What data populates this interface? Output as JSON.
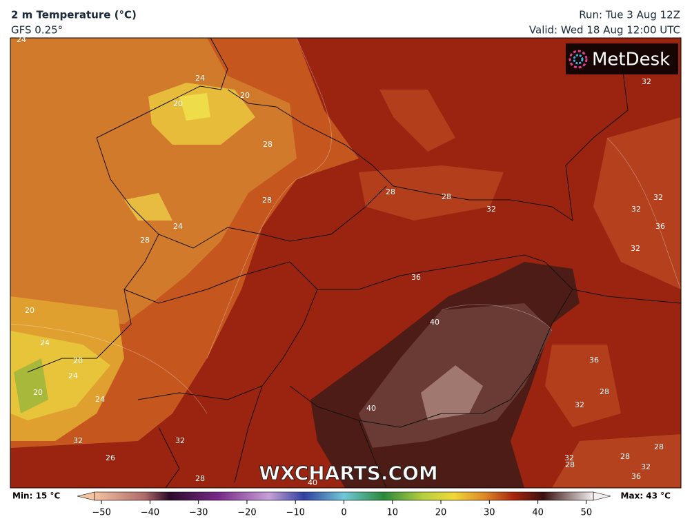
{
  "header": {
    "title": "2 m Temperature (°C)",
    "model": "GFS 0.25°",
    "run": "Run: Tue 3 Aug 12Z",
    "valid": "Valid: Wed 18 Aug 12:00 UTC"
  },
  "logo": "MetDesk",
  "watermark": "WXCHARTS.COM",
  "contour_labels": [
    "24",
    "24",
    "20",
    "20",
    "28",
    "28",
    "24",
    "28",
    "28",
    "28",
    "32",
    "32",
    "32",
    "32",
    "36",
    "32",
    "36",
    "40",
    "20",
    "24",
    "20",
    "24",
    "20",
    "24",
    "36",
    "28",
    "32",
    "40",
    "32",
    "32",
    "26",
    "32",
    "28",
    "28",
    "32",
    "28",
    "36",
    "40",
    "28"
  ],
  "colorbar": {
    "min_label": "Min: 15 °C",
    "max_label": "Max: 43 °C",
    "range": [
      -55,
      55
    ],
    "ticks": [
      {
        "value": -50,
        "label": "−50"
      },
      {
        "value": -40,
        "label": "−40"
      },
      {
        "value": -30,
        "label": "−30"
      },
      {
        "value": -20,
        "label": "−20"
      },
      {
        "value": -10,
        "label": "−10"
      },
      0,
      10,
      20,
      30,
      40,
      50
    ]
  }
}
